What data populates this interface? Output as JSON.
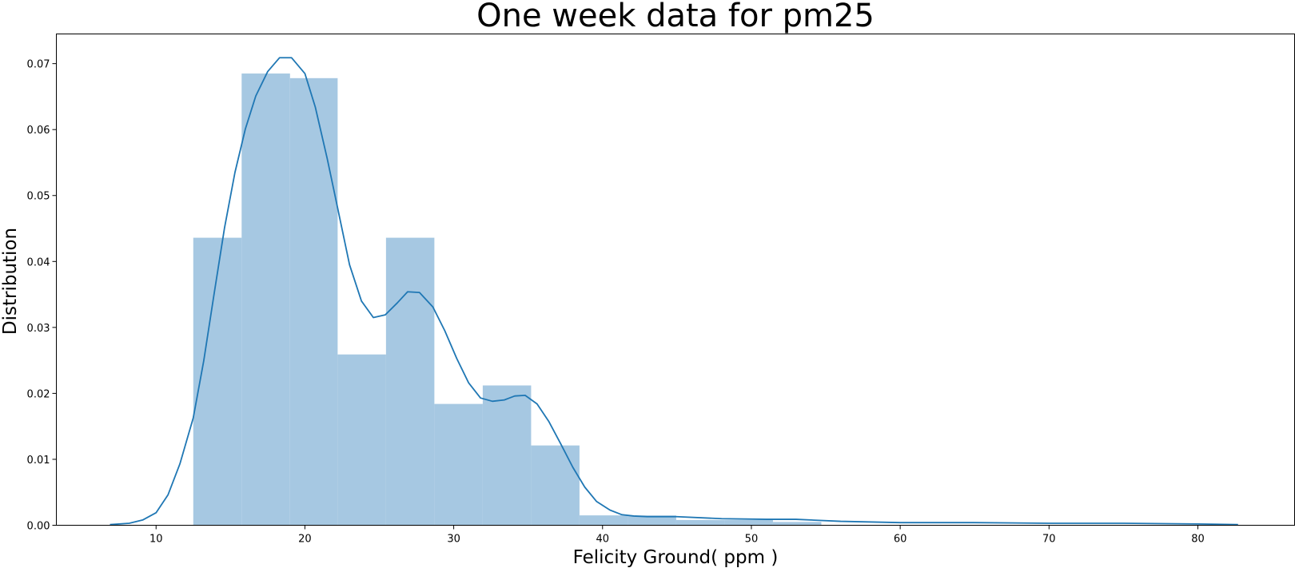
{
  "chart_data": {
    "type": "bar",
    "title": "One week data for pm25",
    "xlabel": "Felicity Ground( ppm )",
    "ylabel": "Distribution",
    "xlim": [
      3.3,
      86.5
    ],
    "ylim": [
      0,
      0.0745
    ],
    "x_ticks": [
      10,
      20,
      30,
      40,
      50,
      60,
      70,
      80
    ],
    "y_ticks": [
      0.0,
      0.01,
      0.02,
      0.03,
      0.04,
      0.05,
      0.06,
      0.07
    ],
    "y_tick_labels": [
      "0.00",
      "0.01",
      "0.02",
      "0.03",
      "0.04",
      "0.05",
      "0.06",
      "0.07"
    ],
    "grid": false,
    "colors": {
      "bars": "#a6c8e2",
      "kde_line": "#1f77b4",
      "axes": "#000000"
    },
    "bins": [
      {
        "x0": 12.5,
        "x1": 15.75,
        "density": 0.0436
      },
      {
        "x0": 15.75,
        "x1": 19.0,
        "density": 0.0685
      },
      {
        "x0": 19.0,
        "x1": 22.2,
        "density": 0.0678
      },
      {
        "x0": 22.2,
        "x1": 25.45,
        "density": 0.0259
      },
      {
        "x0": 25.45,
        "x1": 28.7,
        "density": 0.0436
      },
      {
        "x0": 28.7,
        "x1": 31.95,
        "density": 0.0184
      },
      {
        "x0": 31.95,
        "x1": 35.2,
        "density": 0.0212
      },
      {
        "x0": 35.2,
        "x1": 38.45,
        "density": 0.0121
      },
      {
        "x0": 38.45,
        "x1": 41.7,
        "density": 0.0015
      },
      {
        "x0": 41.7,
        "x1": 44.95,
        "density": 0.0015
      },
      {
        "x0": 44.95,
        "x1": 48.2,
        "density": 0.0008
      },
      {
        "x0": 48.2,
        "x1": 51.45,
        "density": 0.0008
      },
      {
        "x0": 51.45,
        "x1": 54.7,
        "density": 0.0005
      }
    ],
    "kde": {
      "x": [
        6.9,
        8.2,
        9.1,
        10.0,
        10.8,
        11.6,
        12.5,
        13.2,
        13.9,
        14.6,
        15.3,
        16.0,
        16.7,
        17.5,
        18.3,
        19.1,
        20.0,
        20.7,
        21.5,
        22.2,
        23.0,
        23.8,
        24.6,
        25.4,
        26.2,
        26.9,
        27.7,
        28.6,
        29.4,
        30.2,
        31.0,
        31.8,
        32.6,
        33.4,
        34.1,
        34.8,
        35.6,
        36.4,
        37.2,
        38.0,
        38.8,
        39.6,
        40.5,
        41.3,
        42.1,
        43.0,
        45.0,
        48.0,
        51.0,
        53.0,
        56.0,
        60.0,
        65.0,
        70.0,
        75.0,
        80.0,
        82.7
      ],
      "y": [
        0.0001,
        0.0003,
        0.0008,
        0.0019,
        0.0046,
        0.0093,
        0.0163,
        0.0249,
        0.0351,
        0.0451,
        0.0535,
        0.0601,
        0.0651,
        0.0688,
        0.0709,
        0.0709,
        0.0685,
        0.0634,
        0.0556,
        0.0481,
        0.0395,
        0.034,
        0.0315,
        0.0319,
        0.0337,
        0.0354,
        0.0353,
        0.0331,
        0.0295,
        0.0253,
        0.0216,
        0.0193,
        0.0188,
        0.019,
        0.0196,
        0.0197,
        0.0184,
        0.0157,
        0.0123,
        0.0088,
        0.0058,
        0.0036,
        0.0023,
        0.0016,
        0.0014,
        0.0013,
        0.0013,
        0.001,
        0.0009,
        0.0009,
        0.0006,
        0.0004,
        0.0004,
        0.0003,
        0.0003,
        0.0002,
        0.0001
      ]
    }
  }
}
